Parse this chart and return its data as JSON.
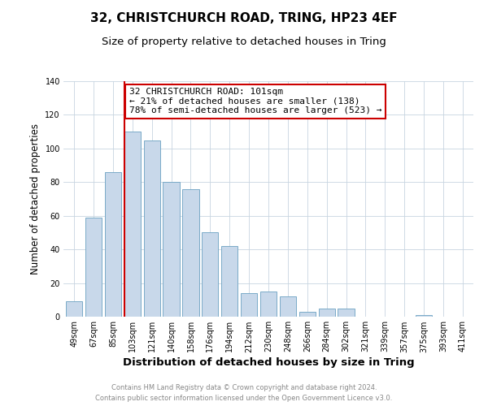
{
  "title": "32, CHRISTCHURCH ROAD, TRING, HP23 4EF",
  "subtitle": "Size of property relative to detached houses in Tring",
  "xlabel": "Distribution of detached houses by size in Tring",
  "ylabel": "Number of detached properties",
  "categories": [
    "49sqm",
    "67sqm",
    "85sqm",
    "103sqm",
    "121sqm",
    "140sqm",
    "158sqm",
    "176sqm",
    "194sqm",
    "212sqm",
    "230sqm",
    "248sqm",
    "266sqm",
    "284sqm",
    "302sqm",
    "321sqm",
    "339sqm",
    "357sqm",
    "375sqm",
    "393sqm",
    "411sqm"
  ],
  "values": [
    9,
    59,
    86,
    110,
    105,
    80,
    76,
    50,
    42,
    14,
    15,
    12,
    3,
    5,
    5,
    0,
    0,
    0,
    1,
    0,
    0
  ],
  "bar_color": "#c8d8ea",
  "bar_edgecolor": "#7aaac8",
  "vline_x_index": 3,
  "vline_color": "#cc0000",
  "annotation_line1": "32 CHRISTCHURCH ROAD: 101sqm",
  "annotation_line2": "← 21% of detached houses are smaller (138)",
  "annotation_line3": "78% of semi-detached houses are larger (523) →",
  "annotation_box_edgecolor": "#cc0000",
  "ylim": [
    0,
    140
  ],
  "yticks": [
    0,
    20,
    40,
    60,
    80,
    100,
    120,
    140
  ],
  "footer_text": "Contains HM Land Registry data © Crown copyright and database right 2024.\nContains public sector information licensed under the Open Government Licence v3.0.",
  "title_fontsize": 11,
  "subtitle_fontsize": 9.5,
  "xlabel_fontsize": 9.5,
  "ylabel_fontsize": 8.5,
  "tick_fontsize": 7,
  "annotation_fontsize": 8,
  "footer_fontsize": 6
}
